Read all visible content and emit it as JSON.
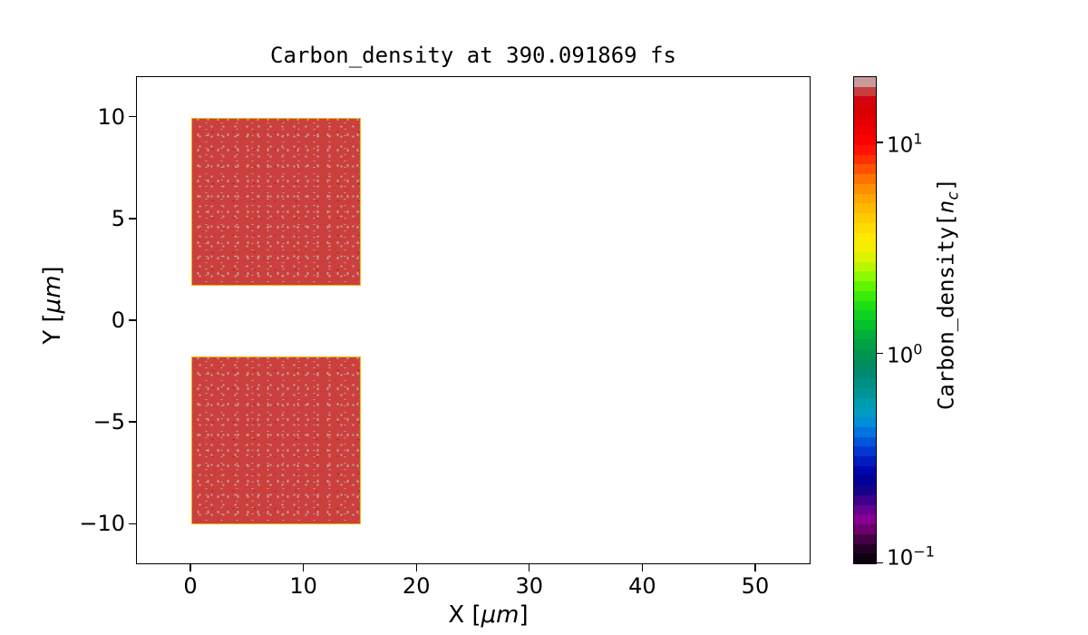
{
  "figure": {
    "title": "Carbon_density at 390.091869 fs",
    "time_fs": "390.091869",
    "background": "#ffffff"
  },
  "axes": {
    "xlabel": {
      "pre": "X [",
      "italic": "μm",
      "post": "]"
    },
    "ylabel": {
      "pre": "Y [",
      "italic": "μm",
      "post": "]"
    },
    "xlim": [
      -4.82,
      54.9
    ],
    "ylim": [
      -12,
      12
    ],
    "x_ticks": [
      {
        "v": 0,
        "label": "0"
      },
      {
        "v": 10,
        "label": "10"
      },
      {
        "v": 20,
        "label": "20"
      },
      {
        "v": 30,
        "label": "30"
      },
      {
        "v": 40,
        "label": "40"
      },
      {
        "v": 50,
        "label": "50"
      }
    ],
    "y_ticks": [
      {
        "v": 10,
        "label": "10"
      },
      {
        "v": 5,
        "label": "5"
      },
      {
        "v": 0,
        "label": "0"
      },
      {
        "v": -5,
        "label": "−5"
      },
      {
        "v": -10,
        "label": "−10"
      }
    ]
  },
  "colors": {
    "block_base": "#cb403d",
    "speckle": "#c89b9b",
    "speckle_dark": "#a82420",
    "block_edge": "#eeb80a",
    "axis_color": "#000000"
  },
  "colorbar": {
    "label": {
      "pre": "Carbon_density[",
      "italic_n": "n",
      "sub_c": "c",
      "post": "]"
    },
    "scale": "log",
    "vmin": 0.1,
    "vmax": 20.6,
    "ticks": [
      {
        "v": 10,
        "base": "10",
        "exp": "1"
      },
      {
        "v": 1,
        "base": "10",
        "exp": "0"
      },
      {
        "v": 0.1,
        "base": "10",
        "exp": "−1"
      }
    ],
    "segments_top_to_bottom": [
      "#c89b9b",
      "#c83d3d",
      "#d20410",
      "#da0000",
      "#e40000",
      "#ee0000",
      "#f80400",
      "#ff1200",
      "#ff3000",
      "#ff5200",
      "#ff7200",
      "#ff8e00",
      "#ffa600",
      "#ffba00",
      "#ffcc00",
      "#ffdc00",
      "#ffe900",
      "#f4ee00",
      "#dcf200",
      "#baf600",
      "#8ef800",
      "#60f400",
      "#38ec0a",
      "#20de16",
      "#10d020",
      "#06c02c",
      "#00b038",
      "#00a244",
      "#009650",
      "#008c5e",
      "#008a70",
      "#009084",
      "#009698",
      "#009cac",
      "#009cc2",
      "#008ed6",
      "#0074e0",
      "#0056da",
      "#0038d0",
      "#001cc0",
      "#0006ae",
      "#00009a",
      "#16008c",
      "#3c008a",
      "#640092",
      "#860092",
      "#6e006e",
      "#460046",
      "#240026",
      "#0e0010"
    ]
  },
  "chart_data": {
    "type": "heatmap",
    "title": "Carbon_density at 390.091869 fs",
    "xlabel": "X [μm]",
    "ylabel": "Y [μm]",
    "xlim": [
      -4.82,
      54.9
    ],
    "ylim": [
      -12,
      12
    ],
    "grid": false,
    "legend": "none",
    "colorbar": {
      "label": "Carbon_density[n_c]",
      "scale": "log",
      "range": [
        0.1,
        20.6
      ],
      "tick_values": [
        10,
        1,
        0.1
      ]
    },
    "regions": [
      {
        "name": "upper-slab",
        "x_um": [
          0,
          15
        ],
        "y_um": [
          1.75,
          10
        ],
        "density_nc": 15,
        "fill": "uniform with speckle noise"
      },
      {
        "name": "lower-slab",
        "x_um": [
          0,
          15
        ],
        "y_um": [
          -10,
          -1.75
        ],
        "density_nc": 15,
        "fill": "uniform with speckle noise"
      }
    ],
    "background_density_nc": 0
  }
}
